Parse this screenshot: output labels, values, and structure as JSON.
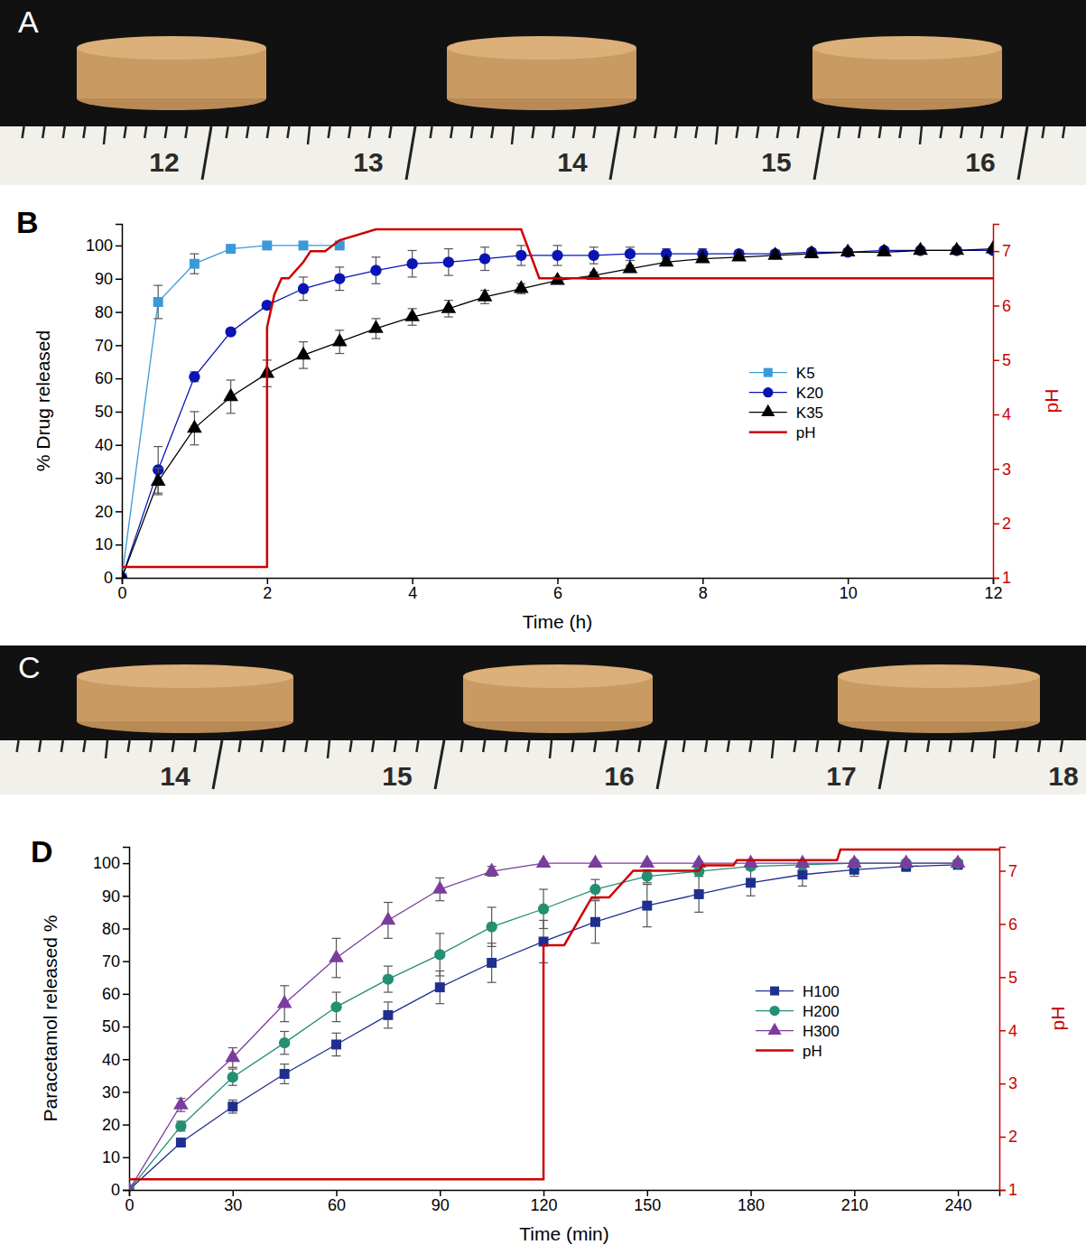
{
  "panel_letters": [
    "A",
    "B",
    "C",
    "D"
  ],
  "photos": [
    {
      "ruler_labels": [
        12,
        13,
        14,
        15,
        16
      ]
    },
    {
      "ruler_labels": [
        14,
        15,
        16,
        17,
        18
      ]
    }
  ],
  "chart_data": [
    {
      "type": "line",
      "x_label": "Time (h)",
      "y_label": "% Drug released",
      "y2_label": "pH",
      "xlim": [
        0,
        12
      ],
      "xticks": [
        0,
        2,
        4,
        6,
        8,
        10,
        12
      ],
      "ylim": [
        0,
        106.5
      ],
      "yticks": [
        0,
        10,
        20,
        30,
        40,
        50,
        60,
        70,
        80,
        90,
        100
      ],
      "y2lim": [
        1,
        7.5
      ],
      "y2ticks": [
        1,
        2,
        3,
        4,
        5,
        6,
        7
      ],
      "grid": false,
      "legend": "right",
      "series": [
        {
          "name": "K5",
          "color": "#3a9ad9",
          "marker": "square",
          "x": [
            0,
            0.5,
            1,
            1.5,
            2,
            2.5,
            3
          ],
          "values": [
            0,
            83,
            94.5,
            99,
            100,
            100,
            100
          ],
          "errors": [
            0,
            5,
            3,
            0.5,
            0.5,
            0.5,
            0.5
          ]
        },
        {
          "name": "K20",
          "color": "#0a14b4",
          "marker": "circle",
          "x": [
            0,
            0.5,
            1,
            1.5,
            2,
            2.5,
            3,
            3.5,
            4,
            4.5,
            5,
            5.5,
            6,
            6.5,
            7,
            7.5,
            8,
            8.5,
            9,
            9.5,
            10,
            10.5,
            11,
            11.5,
            12
          ],
          "values": [
            0,
            32.5,
            60.5,
            74,
            82,
            87,
            90,
            92.5,
            94.5,
            95,
            96,
            97,
            97,
            97,
            97.5,
            97.5,
            97.5,
            97.5,
            97.5,
            98,
            98,
            98.5,
            98.5,
            98.5,
            98.5
          ],
          "errors": [
            0,
            7,
            1.5,
            0.5,
            1,
            3.5,
            3.5,
            4,
            4,
            4,
            3.5,
            3,
            3,
            2.5,
            2,
            1.5,
            1.5,
            1,
            1,
            1,
            1,
            0.5,
            0.5,
            0.5,
            0.5
          ]
        },
        {
          "name": "K35",
          "color": "#000000",
          "marker": "triangle",
          "x": [
            0,
            0.5,
            1,
            1.5,
            2,
            2.5,
            3,
            3.5,
            4,
            4.5,
            5,
            5.5,
            6,
            6.5,
            7,
            7.5,
            8,
            8.5,
            9,
            9.5,
            10,
            10.5,
            11,
            11.5,
            12
          ],
          "values": [
            0,
            29,
            45,
            54.5,
            61.5,
            67,
            71,
            75,
            78.5,
            81,
            84.5,
            87,
            89.5,
            91,
            93,
            95,
            96,
            96.5,
            97,
            97.5,
            98,
            98,
            98.5,
            98.5,
            99
          ],
          "errors": [
            0,
            4,
            5,
            5,
            4,
            4,
            3.5,
            3,
            2.5,
            2.5,
            2,
            1.5,
            1,
            1,
            1,
            1,
            0.5,
            0.5,
            0.5,
            0.5,
            0.5,
            0.5,
            0.5,
            0.5,
            0.5
          ]
        },
        {
          "name": "pH",
          "color": "#cc0000",
          "type": "line",
          "axis": "y2",
          "x": [
            0,
            2,
            2,
            2.1,
            2.2,
            2.3,
            2.5,
            2.6,
            2.8,
            3,
            3.5,
            5.5,
            5.75,
            12
          ],
          "values": [
            1.2,
            1.2,
            5.6,
            6.2,
            6.5,
            6.5,
            6.8,
            7.0,
            7.0,
            7.2,
            7.4,
            7.4,
            6.5,
            6.5
          ]
        }
      ]
    },
    {
      "type": "line",
      "x_label": "Time (min)",
      "y_label": "Paracetamol released %",
      "y2_label": "pH",
      "xlim": [
        0,
        252
      ],
      "xticks": [
        0,
        30,
        60,
        90,
        120,
        150,
        180,
        210,
        240
      ],
      "ylim": [
        0,
        105
      ],
      "yticks": [
        0,
        10,
        20,
        30,
        40,
        50,
        60,
        70,
        80,
        90,
        100
      ],
      "y2lim": [
        1,
        7.45
      ],
      "y2ticks": [
        1,
        2,
        3,
        4,
        5,
        6,
        7
      ],
      "grid": false,
      "legend": "right",
      "series": [
        {
          "name": "H100",
          "color": "#1f2f8f",
          "marker": "square",
          "x": [
            0,
            15,
            30,
            45,
            60,
            75,
            90,
            105,
            120,
            135,
            150,
            165,
            180,
            195,
            210,
            225,
            240
          ],
          "values": [
            0,
            14.5,
            25.5,
            35.5,
            44.5,
            53.5,
            62,
            69.5,
            76,
            82,
            87,
            90.5,
            94,
            96.5,
            98,
            99,
            99.5
          ],
          "errors": [
            0,
            1,
            2,
            3,
            3.5,
            4,
            5,
            6,
            6.5,
            6.5,
            6.5,
            5.5,
            4,
            3.5,
            2,
            1.5,
            1
          ]
        },
        {
          "name": "H200",
          "color": "#239073",
          "marker": "circle",
          "x": [
            0,
            15,
            30,
            45,
            60,
            75,
            90,
            105,
            120,
            135,
            150,
            165,
            180,
            195,
            210,
            225,
            240
          ],
          "values": [
            0,
            19.5,
            34.5,
            45,
            56,
            64.5,
            72,
            80.5,
            86,
            92,
            96,
            97.5,
            99,
            99.5,
            100,
            100,
            100
          ],
          "errors": [
            0,
            1.5,
            2.5,
            3.5,
            4.5,
            4,
            6.5,
            6,
            6,
            3,
            2,
            1.5,
            1,
            0.5,
            0.5,
            0.5,
            0.5
          ]
        },
        {
          "name": "H300",
          "color": "#7a3d9e",
          "marker": "triangle",
          "x": [
            0,
            15,
            30,
            45,
            60,
            75,
            90,
            105,
            120,
            135,
            150,
            165,
            180,
            195,
            210,
            225,
            240
          ],
          "values": [
            0,
            26,
            40.5,
            57,
            71,
            82.5,
            92,
            97.5,
            100,
            100,
            100,
            100,
            100,
            100,
            100,
            100,
            100
          ],
          "errors": [
            0,
            2,
            3,
            5.5,
            6,
            5.5,
            3.5,
            1.5,
            0.5,
            0.5,
            0.5,
            0.5,
            0.5,
            0.5,
            0.5,
            0.5,
            0.5
          ]
        },
        {
          "name": "pH",
          "color": "#cc0000",
          "type": "line",
          "axis": "y2",
          "x": [
            0,
            120,
            120,
            126,
            134,
            139,
            146,
            165,
            166,
            175,
            176,
            205,
            206,
            252
          ],
          "values": [
            1.2,
            1.2,
            5.6,
            5.6,
            6.5,
            6.5,
            7.0,
            7.0,
            7.1,
            7.1,
            7.2,
            7.2,
            7.4,
            7.4
          ]
        }
      ]
    }
  ]
}
